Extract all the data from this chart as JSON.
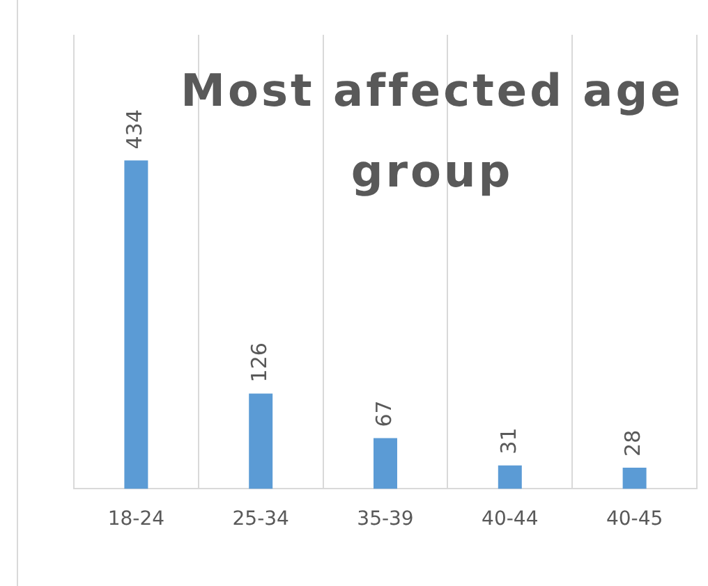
{
  "chart_data": {
    "type": "bar",
    "title": "Most affected age group",
    "categories": [
      "18-24",
      "25-34",
      "35-39",
      "40-44",
      "40-45"
    ],
    "values": [
      434,
      126,
      67,
      31,
      28
    ],
    "color": "#5b9bd5",
    "ylim": [
      0,
      600
    ],
    "tick_labels": "x",
    "data_labels": true,
    "grid": "x",
    "legend": false
  }
}
